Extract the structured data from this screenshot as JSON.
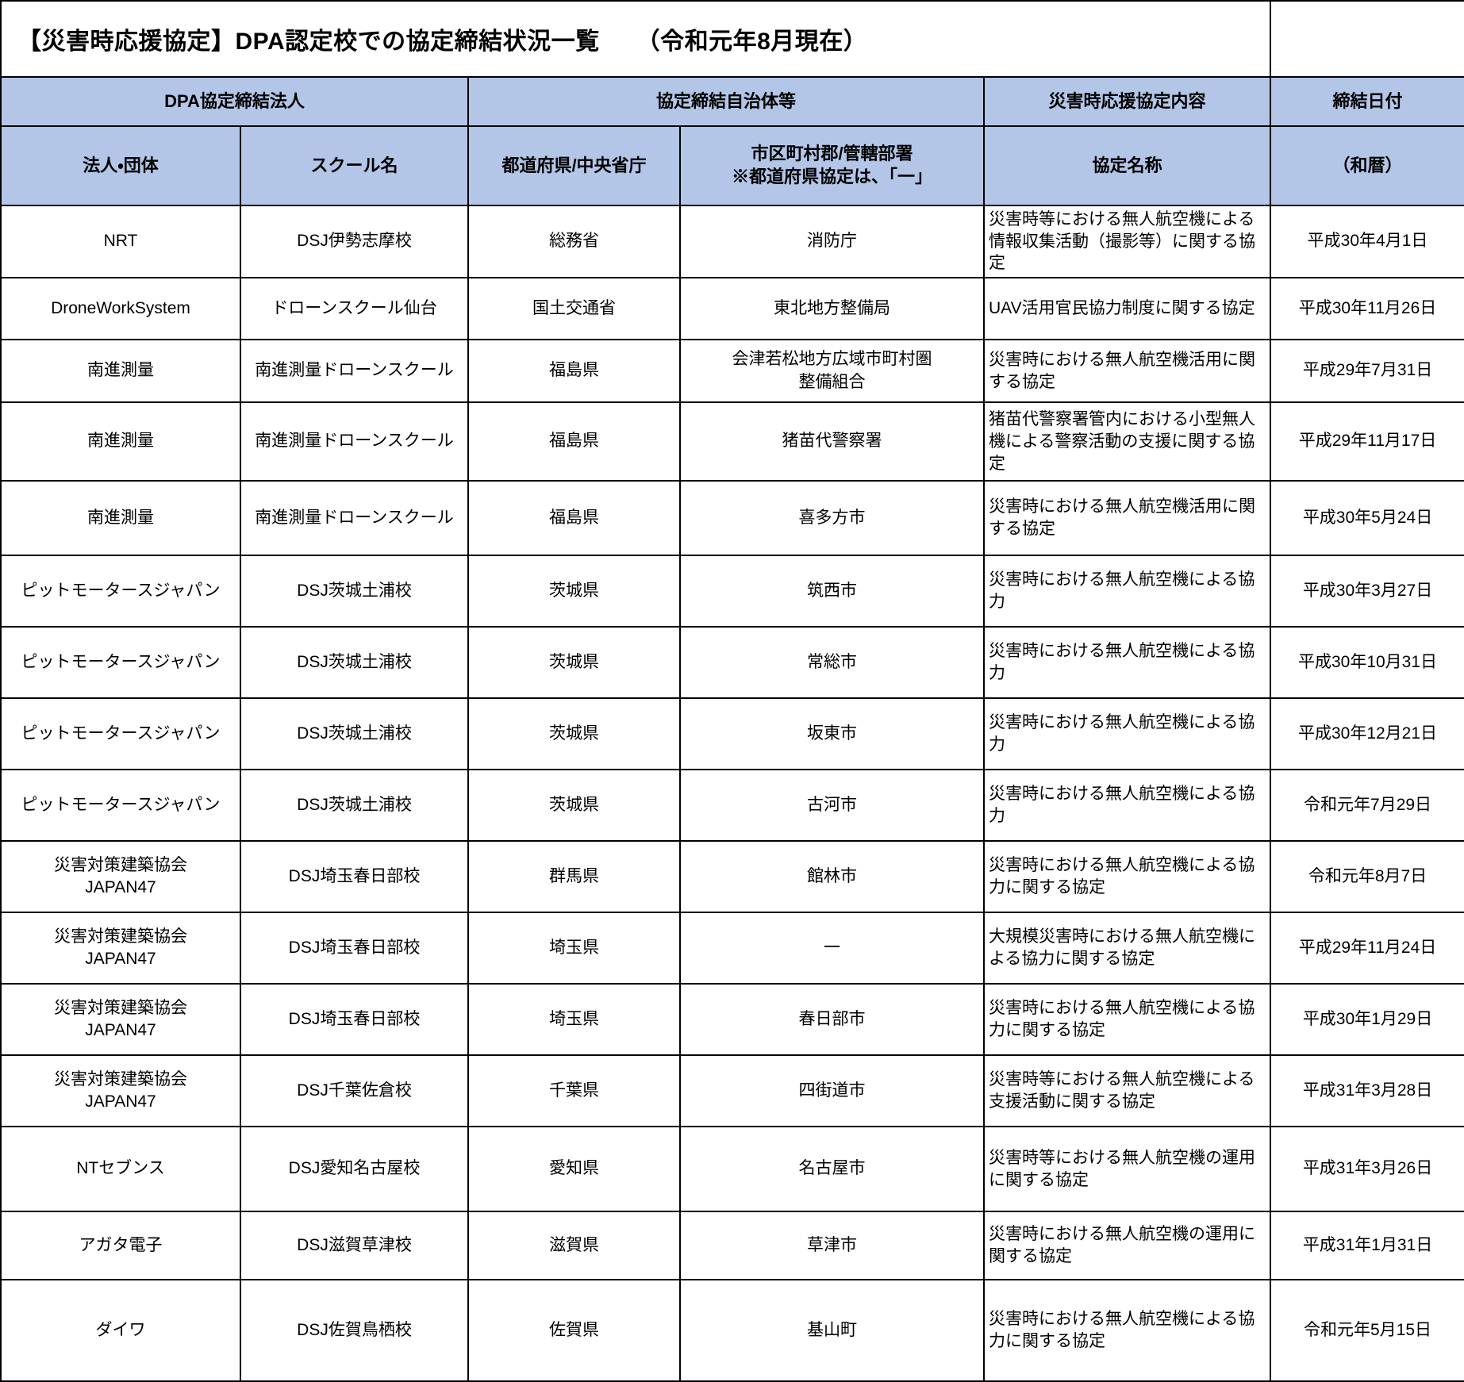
{
  "document": {
    "title": "【災害時応援協定】DPA認定校での協定締結状況一覧　　（令和元年8月現在）"
  },
  "colors": {
    "header_background": "#b4c6e7",
    "border": "#000000"
  },
  "table": {
    "header_groups": {
      "corporation_group": "DPA協定締結法人",
      "municipality_group": "協定締結自治体等",
      "agreement_group": "災害時応援協定内容",
      "date_group": "締結日付"
    },
    "columns": {
      "corporation": "法人・団体",
      "school": "スクール名",
      "prefecture": "都道府県/中央省庁",
      "municipality": "市区町村郡/管轄部署",
      "municipality_note": "※都道府県協定は、「一」",
      "agreement": "協定名称",
      "date": "（和暦）"
    },
    "rows": [
      {
        "corporation": "NRT",
        "school": "DSJ伊勢志摩校",
        "prefecture": "総務省",
        "municipality": "消防庁",
        "agreement": "災害時等における無人航空機による情報収集活動（撮影等）に関する協定",
        "date": "平成30年4月1日"
      },
      {
        "corporation": "DroneWorkSystem",
        "school": "ドローンスクール仙台",
        "prefecture": "国土交通省",
        "municipality": "東北地方整備局",
        "agreement": "UAV活用官民協力制度に関する協定",
        "date": "平成30年11月26日"
      },
      {
        "corporation": "南進測量",
        "school": "南進測量ドローンスクール",
        "prefecture": "福島県",
        "municipality": "会津若松地方広域市町村圏\n整備組合",
        "agreement": "災害時における無人航空機活用に関する協定",
        "date": "平成29年7月31日"
      },
      {
        "corporation": "南進測量",
        "school": "南進測量ドローンスクール",
        "prefecture": "福島県",
        "municipality": "猪苗代警察署",
        "agreement": "猪苗代警察署管内における小型無人機による警察活動の支援に関する協定",
        "date": "平成29年11月17日"
      },
      {
        "corporation": "南進測量",
        "school": "南進測量ドローンスクール",
        "prefecture": "福島県",
        "municipality": "喜多方市",
        "agreement": "災害時における無人航空機活用に関する協定",
        "date": "平成30年5月24日"
      },
      {
        "corporation": "ピットモータースジャパン",
        "school": "DSJ茨城土浦校",
        "prefecture": "茨城県",
        "municipality": "筑西市",
        "agreement": "災害時における無人航空機による協力",
        "date": "平成30年3月27日"
      },
      {
        "corporation": "ピットモータースジャパン",
        "school": "DSJ茨城土浦校",
        "prefecture": "茨城県",
        "municipality": "常総市",
        "agreement": "災害時における無人航空機による協力",
        "date": "平成30年10月31日"
      },
      {
        "corporation": "ピットモータースジャパン",
        "school": "DSJ茨城土浦校",
        "prefecture": "茨城県",
        "municipality": "坂東市",
        "agreement": "災害時における無人航空機による協力",
        "date": "平成30年12月21日"
      },
      {
        "corporation": "ピットモータースジャパン",
        "school": "DSJ茨城土浦校",
        "prefecture": "茨城県",
        "municipality": "古河市",
        "agreement": "災害時における無人航空機による協力",
        "date": "令和元年7月29日"
      },
      {
        "corporation": "災害対策建築協会\nJAPAN47",
        "school": "DSJ埼玉春日部校",
        "prefecture": "群馬県",
        "municipality": "館林市",
        "agreement": "災害時における無人航空機による協力に関する協定",
        "date": "令和元年8月7日"
      },
      {
        "corporation": "災害対策建築協会\nJAPAN47",
        "school": "DSJ埼玉春日部校",
        "prefecture": "埼玉県",
        "municipality": "一",
        "agreement": "大規模災害時における無人航空機による協力に関する協定",
        "date": "平成29年11月24日"
      },
      {
        "corporation": "災害対策建築協会\nJAPAN47",
        "school": "DSJ埼玉春日部校",
        "prefecture": "埼玉県",
        "municipality": "春日部市",
        "agreement": "災害時における無人航空機による協力に関する協定",
        "date": "平成30年1月29日"
      },
      {
        "corporation": "災害対策建築協会\nJAPAN47",
        "school": "DSJ千葉佐倉校",
        "prefecture": "千葉県",
        "municipality": "四街道市",
        "agreement": "災害時等における無人航空機による支援活動に関する協定",
        "date": "平成31年3月28日"
      },
      {
        "corporation": "NTセブンス",
        "school": "DSJ愛知名古屋校",
        "prefecture": "愛知県",
        "municipality": "名古屋市",
        "agreement": "災害時等における無人航空機の運用に関する協定",
        "date": "平成31年3月26日"
      },
      {
        "corporation": "アガタ電子",
        "school": "DSJ滋賀草津校",
        "prefecture": "滋賀県",
        "municipality": "草津市",
        "agreement": "災害時における無人航空機の運用に関する協定",
        "date": "平成31年1月31日"
      },
      {
        "corporation": "ダイワ",
        "school": "DSJ佐賀鳥栖校",
        "prefecture": "佐賀県",
        "municipality": "基山町",
        "agreement": "災害時における無人航空機による協力に関する協定",
        "date": "令和元年5月15日"
      }
    ]
  }
}
